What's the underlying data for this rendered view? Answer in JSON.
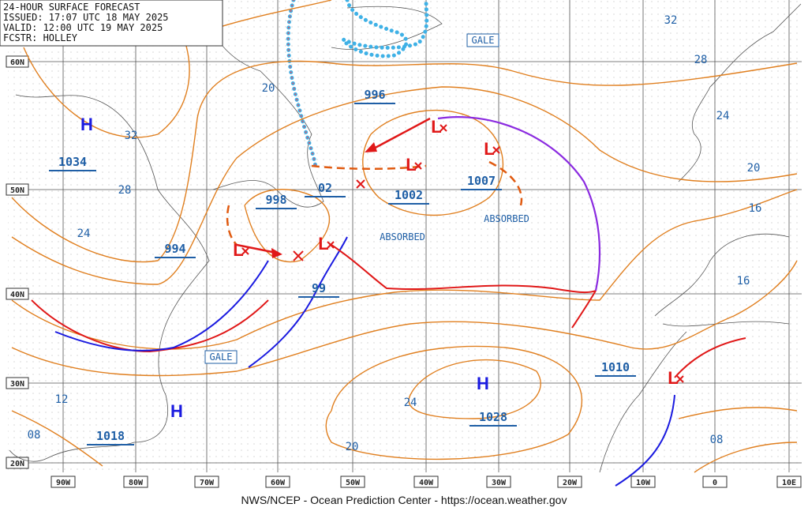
{
  "header": {
    "lines": [
      "24-HOUR SURFACE FORECAST",
      "ISSUED: 17:07 UTC 18 MAY 2025",
      "VALID:  12:00 UTC 19 MAY 2025",
      "FCSTR:  HOLLEY"
    ]
  },
  "lat_labels": [
    "60N",
    "50N",
    "40N",
    "30N",
    "20N"
  ],
  "lon_labels": [
    "90W",
    "80W",
    "70W",
    "60W",
    "50W",
    "40W",
    "30W",
    "20W",
    "10W",
    "0",
    "10E"
  ],
  "high_centers": [
    {
      "symbol": "H",
      "pressure": "1034"
    },
    {
      "symbol": "H",
      "pressure": "1028"
    },
    {
      "symbol": "H",
      "pressure": "1018"
    }
  ],
  "low_centers": [
    {
      "symbol": "L"
    },
    {
      "symbol": "L"
    },
    {
      "symbol": "L"
    },
    {
      "symbol": "L"
    },
    {
      "symbol": "L"
    },
    {
      "symbol": "L"
    }
  ],
  "pressure_labels": [
    "994",
    "998",
    "02",
    "996",
    "1002",
    "1007",
    "99",
    "1010"
  ],
  "isobar_labels": [
    "32",
    "28",
    "24",
    "20",
    "16",
    "16",
    "08",
    "32",
    "28",
    "24",
    "20",
    "12",
    "08",
    "24",
    "20"
  ],
  "annotations": [
    "GALE",
    "GALE",
    "ABSORBED",
    "ABSORBED"
  ],
  "footer": "NWS/NCEP - Ocean Prediction Center - https://ocean.weather.gov"
}
